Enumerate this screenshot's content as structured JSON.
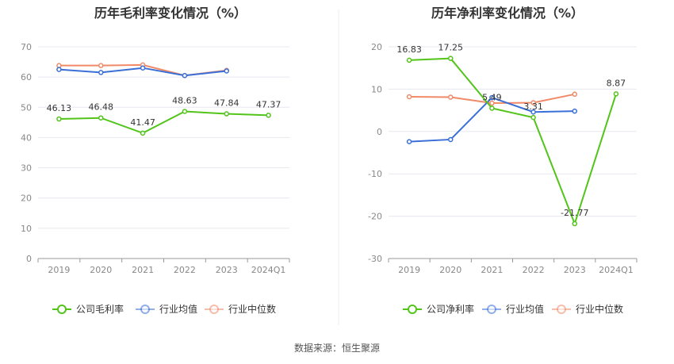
{
  "source": "数据来源：恒生聚源",
  "chart_data": [
    {
      "type": "line",
      "title": "历年毛利率变化情况（%）",
      "categories": [
        "2019",
        "2020",
        "2021",
        "2022",
        "2023",
        "2024Q1"
      ],
      "y_ticks": [
        "0",
        "10",
        "20",
        "30",
        "40",
        "50",
        "60",
        "70"
      ],
      "ylim": [
        0,
        70
      ],
      "grid": true,
      "legend_position": "bottom",
      "series": [
        {
          "name": "公司毛利率",
          "color": "#52c41a",
          "values": [
            46.13,
            46.48,
            41.47,
            48.63,
            47.84,
            47.37
          ],
          "labels": [
            "46.13",
            "46.48",
            "41.47",
            "48.63",
            "47.84",
            "47.37"
          ]
        },
        {
          "name": "行业均值",
          "color": "#3a6fd8",
          "values": [
            62.5,
            61.5,
            63.0,
            60.5,
            62.0,
            null
          ]
        },
        {
          "name": "行业中位数",
          "color": "#f08a68",
          "values": [
            63.8,
            63.8,
            64.0,
            60.5,
            62.2,
            null
          ]
        }
      ]
    },
    {
      "type": "line",
      "title": "历年净利率变化情况（%）",
      "categories": [
        "2019",
        "2020",
        "2021",
        "2022",
        "2023",
        "2024Q1"
      ],
      "y_ticks": [
        "-30",
        "-20",
        "-10",
        "0",
        "10",
        "20"
      ],
      "ylim": [
        -30,
        20
      ],
      "grid": true,
      "legend_position": "bottom",
      "series": [
        {
          "name": "公司净利率",
          "color": "#52c41a",
          "values": [
            16.83,
            17.25,
            5.49,
            3.31,
            -21.77,
            8.87
          ],
          "labels": [
            "16.83",
            "17.25",
            "5.49",
            "3.31",
            "-21.77",
            "8.87"
          ]
        },
        {
          "name": "行业均值",
          "color": "#3a6fd8",
          "values": [
            -2.4,
            -1.9,
            8.0,
            4.6,
            4.8,
            null
          ]
        },
        {
          "name": "行业中位数",
          "color": "#f08a68",
          "values": [
            8.2,
            8.1,
            6.7,
            6.8,
            8.8,
            null
          ]
        }
      ]
    }
  ]
}
